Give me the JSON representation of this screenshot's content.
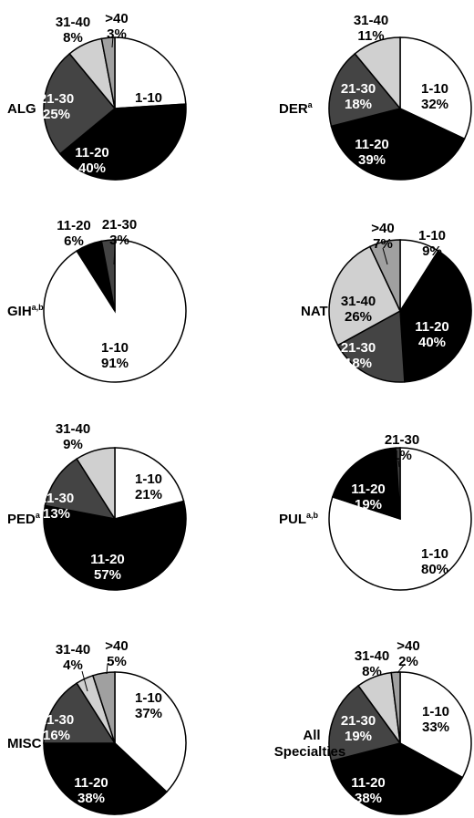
{
  "colors": {
    "1-10": "#ffffff",
    "11-20": "#000000",
    "21-30": "#444444",
    "31-40": "#d0d0d0",
    ">40": "#a0a0a0",
    "outline": "#000000"
  },
  "chart_data": [
    {
      "type": "pie",
      "title": "ALG",
      "slices": [
        {
          "category": "1-10",
          "value": 24,
          "label": "24%"
        },
        {
          "category": "11-20",
          "value": 40,
          "label": "40%"
        },
        {
          "category": "21-30",
          "value": 25,
          "label": "25%"
        },
        {
          "category": "31-40",
          "value": 8,
          "label": "8%"
        },
        {
          "category": ">40",
          "value": 3,
          "label": "3%"
        }
      ]
    },
    {
      "type": "pie",
      "title": "DER",
      "title_sup": "a",
      "slices": [
        {
          "category": "1-10",
          "value": 32,
          "label": "32%"
        },
        {
          "category": "11-20",
          "value": 39,
          "label": "39%"
        },
        {
          "category": "21-30",
          "value": 18,
          "label": "18%"
        },
        {
          "category": "31-40",
          "value": 11,
          "label": "11%"
        }
      ]
    },
    {
      "type": "pie",
      "title": "GIH",
      "title_sup": "a,b",
      "slices": [
        {
          "category": "1-10",
          "value": 91,
          "label": "91%"
        },
        {
          "category": "11-20",
          "value": 6,
          "label": "6%"
        },
        {
          "category": "21-30",
          "value": 3,
          "label": "3%"
        }
      ]
    },
    {
      "type": "pie",
      "title": "NAT",
      "slices": [
        {
          "category": "1-10",
          "value": 9,
          "label": "9%"
        },
        {
          "category": "11-20",
          "value": 40,
          "label": "40%"
        },
        {
          "category": "21-30",
          "value": 18,
          "label": "18%"
        },
        {
          "category": "31-40",
          "value": 26,
          "label": "26%"
        },
        {
          "category": ">40",
          "value": 7,
          "label": "7%"
        }
      ]
    },
    {
      "type": "pie",
      "title": "PED",
      "title_sup": "a",
      "slices": [
        {
          "category": "1-10",
          "value": 21,
          "label": "21%"
        },
        {
          "category": "11-20",
          "value": 57,
          "label": "57%"
        },
        {
          "category": "21-30",
          "value": 13,
          "label": "13%"
        },
        {
          "category": "31-40",
          "value": 9,
          "label": "9%"
        }
      ]
    },
    {
      "type": "pie",
      "title": "PUL",
      "title_sup": "a,b",
      "slices": [
        {
          "category": "1-10",
          "value": 80,
          "label": "80%"
        },
        {
          "category": "11-20",
          "value": 19,
          "label": "19%"
        },
        {
          "category": "21-30",
          "value": 1,
          "label": "1%"
        }
      ]
    },
    {
      "type": "pie",
      "title": "MISC",
      "slices": [
        {
          "category": "1-10",
          "value": 37,
          "label": "37%"
        },
        {
          "category": "11-20",
          "value": 38,
          "label": "38%"
        },
        {
          "category": "21-30",
          "value": 16,
          "label": "16%"
        },
        {
          "category": "31-40",
          "value": 4,
          "label": "4%"
        },
        {
          "category": ">40",
          "value": 5,
          "label": "5%"
        }
      ]
    },
    {
      "type": "pie",
      "title": "All Specialties",
      "slices": [
        {
          "category": "1-10",
          "value": 33,
          "label": "33%"
        },
        {
          "category": "11-20",
          "value": 38,
          "label": "38%"
        },
        {
          "category": "21-30",
          "value": 19,
          "label": "19%"
        },
        {
          "category": "31-40",
          "value": 8,
          "label": "8%"
        },
        {
          "category": ">40",
          "value": 2,
          "label": "2%"
        }
      ]
    }
  ]
}
